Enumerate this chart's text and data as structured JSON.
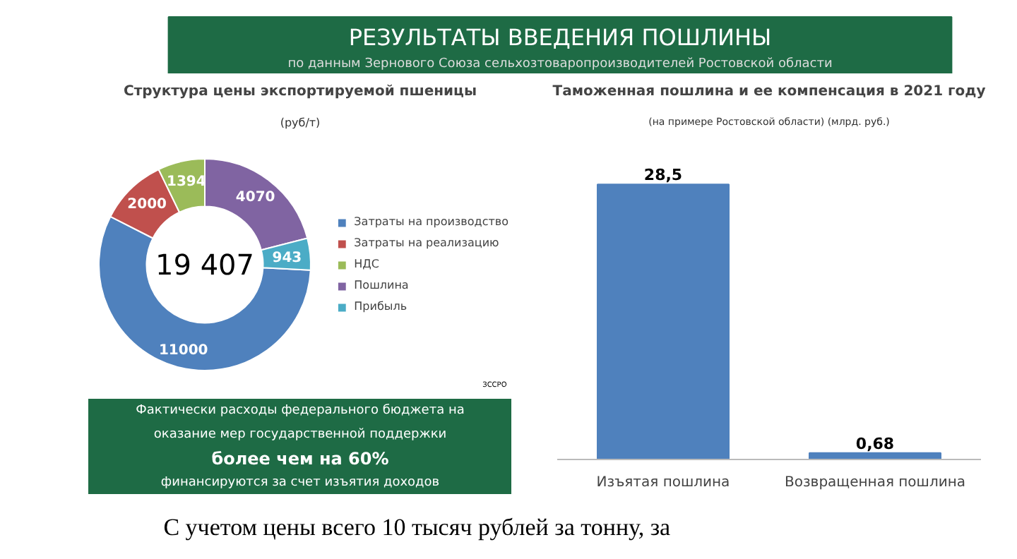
{
  "chart_data": [
    {
      "type": "other",
      "title": "РЕЗУЛЬТАТЫ ВВЕДЕНИЯ ПОШЛИНЫ",
      "subtitle": "по данным Зернового Союза сельхозтоваропроизводителей Ростовской области"
    },
    {
      "type": "donut",
      "title": "Структура цены экспортируемой пшеницы",
      "subtitle": "(руб/т)",
      "categories": [
        "Затраты на производство",
        "Затраты на реализацию",
        "НДС",
        "Пошлина",
        "Прибыль"
      ],
      "values": [
        11000,
        2000,
        1394,
        4070,
        943
      ],
      "colors": [
        "#4f81bd",
        "#c0504d",
        "#9bbb59",
        "#8064a2",
        "#4bacc6"
      ],
      "data_labels": true,
      "legend": "right",
      "annotations": [
        "19 407",
        "ЗССРО"
      ]
    },
    {
      "type": "bar",
      "title": "Таможенная пошлина и ее компенсация в 2021 году",
      "subtitle": "(на примере Ростовской области) (млрд. руб.)",
      "categories": [
        "Изъятая пошлина",
        "Возвращенная пошлина"
      ],
      "values": [
        28.5,
        0.68
      ],
      "value_labels": [
        "28,5",
        "0,68"
      ],
      "color": "#4f81bd"
    },
    {
      "type": "other",
      "annotations": [
        "Фактически расходы федерального бюджета на",
        "оказание мер государственной поддержки",
        "более чем на 60%",
        "финансируются за счет изъятия доходов"
      ]
    },
    {
      "type": "other",
      "annotations": [
        "С учетом цены всего 10 тысяч рублей за тонну, за"
      ]
    }
  ]
}
